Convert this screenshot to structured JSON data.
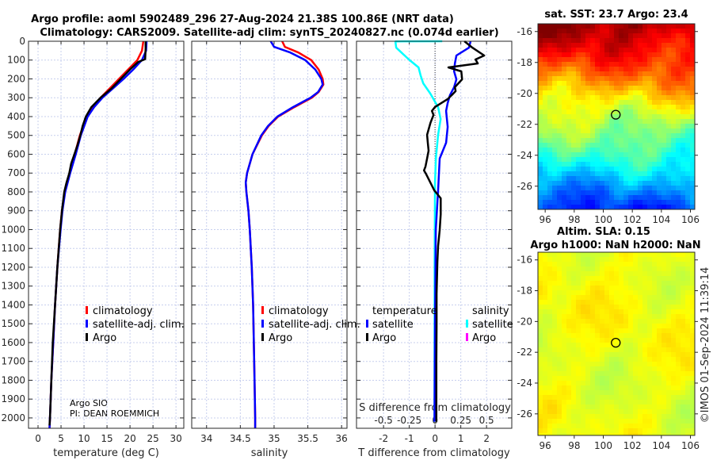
{
  "header": {
    "line1": "Argo profile: aoml 5902489_296 27-Aug-2024 21.38S 100.86E (NRT data)",
    "line2": "Climatology: CARS2009. Satellite-adj clim: synTS_20240827.nc (0.074d earlier)"
  },
  "credits": {
    "institution": "Argo SIO",
    "pi": "PI: DEAN ROEMMICH",
    "copyright": "©IMOS 01-Sep-2024 11:39:14"
  },
  "chart_data": [
    {
      "type": "line",
      "id": "temperature",
      "xlabel": "temperature (deg C)",
      "ylabel": "depth",
      "xlim": [
        -2.07,
        31.7
      ],
      "ylim": [
        2055,
        0
      ],
      "xticks": [
        "0",
        "5",
        "10",
        "15",
        "20",
        "25",
        "30"
      ],
      "yticks": [
        "0",
        "100",
        "200",
        "300",
        "400",
        "500",
        "600",
        "700",
        "800",
        "900",
        "1000",
        "1100",
        "1200",
        "1300",
        "1400",
        "1500",
        "1600",
        "1700",
        "1800",
        "1900",
        "2000"
      ],
      "grid": true,
      "legend": [
        "climatology",
        "satellite-adj. clim.",
        "Argo"
      ],
      "series": [
        {
          "name": "climatology",
          "color": "#ff0000",
          "depth": [
            0,
            50,
            100,
            150,
            200,
            250,
            300,
            350,
            400,
            500,
            600,
            700,
            800,
            900,
            1000,
            1200,
            1400,
            1600,
            1800,
            2000,
            2055
          ],
          "values": [
            22.9,
            22.6,
            21.6,
            19.6,
            17.6,
            15.6,
            13.6,
            12.0,
            10.6,
            9.1,
            8.0,
            6.9,
            5.8,
            5.2,
            4.8,
            4.2,
            3.7,
            3.3,
            2.9,
            2.6,
            2.5
          ]
        },
        {
          "name": "satellite-adj. clim.",
          "color": "#0000ff",
          "depth": [
            0,
            50,
            100,
            150,
            200,
            250,
            300,
            350,
            400,
            500,
            600,
            700,
            800,
            900,
            1000,
            1200,
            1400,
            1600,
            1800,
            2000,
            2055
          ],
          "values": [
            23.6,
            23.5,
            22.6,
            20.7,
            18.6,
            16.3,
            14.0,
            12.2,
            10.8,
            9.3,
            8.2,
            7.0,
            5.9,
            5.3,
            4.9,
            4.2,
            3.7,
            3.3,
            2.9,
            2.6,
            2.5
          ]
        },
        {
          "name": "Argo",
          "color": "#000000",
          "depth": [
            0,
            40,
            95,
            110,
            150,
            200,
            250,
            300,
            350,
            400,
            450,
            500,
            550,
            600,
            650,
            700,
            750,
            800,
            900,
            1000,
            1200,
            1400,
            1600,
            1800,
            2000,
            2040
          ],
          "values": [
            23.4,
            23.4,
            23.3,
            21.8,
            20.0,
            18.0,
            16.0,
            13.6,
            11.6,
            10.4,
            9.7,
            9.2,
            8.6,
            7.9,
            7.2,
            6.8,
            6.2,
            5.7,
            5.2,
            4.8,
            4.2,
            3.7,
            3.2,
            2.9,
            2.6,
            2.5
          ]
        }
      ]
    },
    {
      "type": "line",
      "id": "salinity",
      "xlabel": "salinity",
      "xlim": [
        33.78,
        36.08
      ],
      "ylim": [
        2055,
        0
      ],
      "xticks": [
        "34",
        "34.5",
        "35",
        "35.5",
        "36"
      ],
      "grid": true,
      "legend": [
        "climatology",
        "satellite-adj. clim.",
        "Argo"
      ],
      "series": [
        {
          "name": "climatology",
          "color": "#ff0000",
          "depth": [
            0,
            30,
            60,
            100,
            150,
            200,
            230,
            270,
            300,
            350,
            400,
            450,
            500,
            600,
            700,
            750,
            800,
            900,
            1000,
            1200,
            1400,
            1600,
            1800,
            2000,
            2055
          ],
          "values": [
            35.12,
            35.16,
            35.36,
            35.55,
            35.66,
            35.72,
            35.73,
            35.66,
            35.56,
            35.3,
            35.06,
            34.92,
            34.82,
            34.68,
            34.6,
            34.58,
            34.59,
            34.62,
            34.64,
            34.67,
            34.69,
            34.7,
            34.71,
            34.72,
            34.72
          ]
        },
        {
          "name": "satellite-adj. clim.",
          "color": "#0000ff",
          "depth": [
            0,
            30,
            60,
            100,
            150,
            200,
            230,
            270,
            300,
            350,
            400,
            450,
            500,
            600,
            700,
            750,
            800,
            900,
            1000,
            1200,
            1400,
            1600,
            1800,
            2000,
            2055
          ],
          "values": [
            34.95,
            35.0,
            35.24,
            35.46,
            35.61,
            35.7,
            35.72,
            35.65,
            35.54,
            35.28,
            35.05,
            34.91,
            34.81,
            34.68,
            34.6,
            34.58,
            34.59,
            34.62,
            34.64,
            34.67,
            34.69,
            34.7,
            34.71,
            34.72,
            34.72
          ]
        }
      ]
    },
    {
      "type": "line",
      "id": "difference",
      "xlabel": "T difference from climatology",
      "xlim": [
        -3.05,
        2.98
      ],
      "ylim": [
        2055,
        0
      ],
      "xticks": [
        "-2",
        "-1",
        "0",
        "1",
        "2"
      ],
      "secondary_axis": {
        "label": "S difference from climatology",
        "ticks": [
          "-0.5",
          "-0.25",
          "0",
          "0.25",
          "0.5"
        ],
        "scale_T_per_S": 4
      },
      "grid": true,
      "legend": {
        "temperature_title": "temperature",
        "salinity_title": "salinity",
        "items": [
          "satellite",
          "Argo",
          "satellite",
          "Argo"
        ]
      },
      "series": [
        {
          "name": "T satellite",
          "axis": "T",
          "color": "#0000ff",
          "depth": [
            0,
            34,
            76,
            118,
            160,
            202,
            244,
            286,
            328,
            370,
            455,
            539,
            623,
            792,
            1000,
            1500,
            2000,
            2020
          ],
          "values": [
            1.38,
            1.32,
            0.83,
            0.77,
            0.74,
            0.83,
            0.74,
            0.58,
            0.49,
            0.43,
            0.49,
            0.43,
            0.18,
            0.12,
            0.03,
            0.0,
            -0.02,
            -0.03
          ]
        },
        {
          "name": "T Argo",
          "axis": "T",
          "color": "#000000",
          "depth": [
            0,
            34,
            76,
            97,
            118,
            139,
            160,
            202,
            244,
            265,
            286,
            307,
            349,
            370,
            391,
            434,
            497,
            539,
            581,
            623,
            665,
            686,
            707,
            792,
            834,
            876,
            918,
            1003,
            1087,
            1171,
            1340,
            1500,
            1700,
            1900,
            2020
          ],
          "values": [
            1.14,
            1.45,
            1.91,
            1.57,
            1.66,
            0.52,
            1.02,
            1.05,
            0.77,
            0.8,
            0.65,
            0.49,
            0.0,
            -0.12,
            -0.06,
            -0.18,
            -0.31,
            -0.28,
            -0.25,
            -0.31,
            -0.37,
            -0.43,
            -0.34,
            -0.03,
            0.22,
            0.22,
            0.22,
            0.18,
            0.12,
            0.09,
            0.06,
            0.06,
            0.05,
            0.05,
            0.05
          ]
        },
        {
          "name": "S satellite",
          "axis": "S",
          "color": "#00ffff",
          "depth": [
            0,
            1,
            34,
            97,
            139,
            181,
            223,
            278,
            350,
            413,
            497,
            623,
            750,
            1200,
            2020
          ],
          "values": [
            0.07,
            -0.385,
            -0.377,
            -0.254,
            -0.16,
            -0.14,
            -0.115,
            -0.046,
            0.03,
            0.054,
            0.03,
            0.008,
            0.0,
            -0.004,
            -0.006
          ]
        },
        {
          "name": "S Argo",
          "axis": "S",
          "color": "#ff00ff",
          "depth": [],
          "values": []
        }
      ]
    },
    {
      "type": "heatmap",
      "id": "sst-map",
      "title": "sat. SST: 23.7 Argo: 23.4",
      "xlim": [
        95.5,
        106.3
      ],
      "ylim": [
        -15.5,
        -27.5
      ],
      "xticks": [
        "96",
        "98",
        "100",
        "102",
        "104",
        "106"
      ],
      "yticks": [
        "-16",
        "-18",
        "-20",
        "-22",
        "-24",
        "-26"
      ],
      "marker": {
        "lon": 100.86,
        "lat": -21.38
      }
    },
    {
      "type": "heatmap",
      "id": "sla-map",
      "title": "Altim. SLA: 0.15",
      "subtitle": "Argo h1000: NaN h2000: NaN",
      "xlim": [
        95.5,
        106.3
      ],
      "ylim": [
        -15.5,
        -27.4
      ],
      "xticks": [
        "96",
        "98",
        "100",
        "102",
        "104",
        "106"
      ],
      "yticks": [
        "-16",
        "-18",
        "-20",
        "-22",
        "-24",
        "-26"
      ],
      "marker": {
        "lon": 100.86,
        "lat": -21.38
      }
    }
  ]
}
